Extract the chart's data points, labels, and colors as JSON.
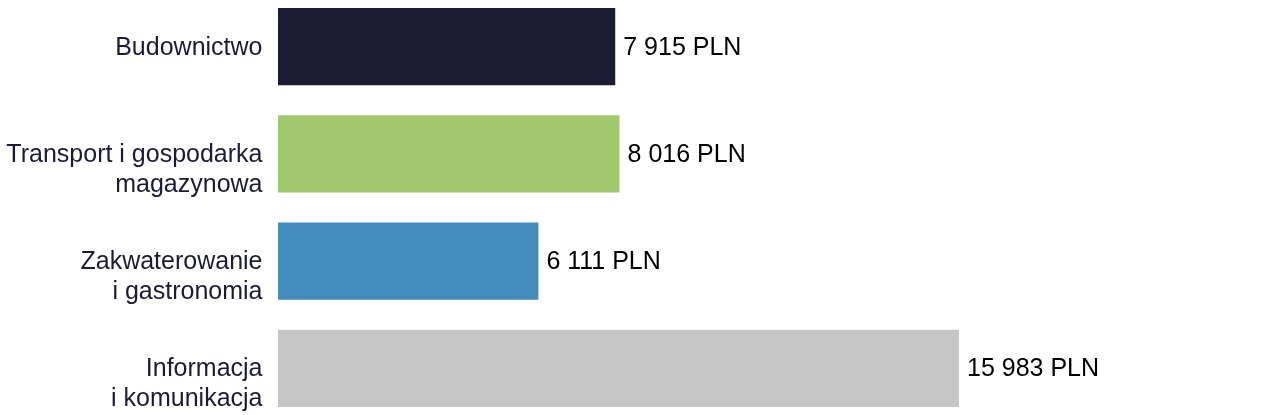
{
  "chart_data": {
    "type": "bar",
    "orientation": "horizontal",
    "categories": [
      "Budownictwo",
      "Transport i gospodarka\nmagazynowa",
      "Zakwaterowanie\ni gastronomia",
      "Informacja\ni komunikacja"
    ],
    "values": [
      7915,
      8016,
      6111,
      15983
    ],
    "colors": [
      "#1b1b35",
      "#a1c96d",
      "#438dbd",
      "#c6c6c6"
    ],
    "value_labels": [
      "7 915 PLN",
      "8 016 PLN",
      "6 111 PLN",
      "15 983 PLN"
    ]
  }
}
